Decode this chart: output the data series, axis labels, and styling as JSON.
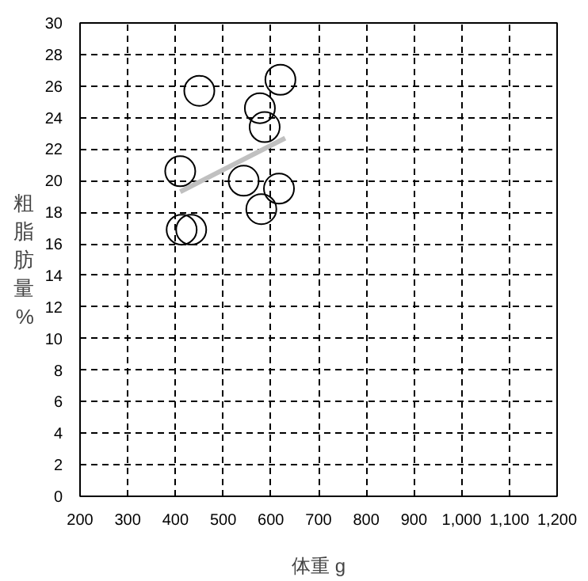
{
  "chart_data": {
    "type": "scatter",
    "xlabel": "体重 g",
    "ylabel": "粗脂肪量%",
    "grid": true,
    "xlim": [
      200,
      1200
    ],
    "ylim": [
      0,
      30
    ],
    "xticks": [
      200,
      300,
      400,
      500,
      600,
      700,
      800,
      900,
      {
        "value": 1000,
        "label": "1,000"
      },
      {
        "value": 1100,
        "label": "1,100"
      },
      {
        "value": 1200,
        "label": "1,200"
      }
    ],
    "yticks": [
      0,
      2,
      4,
      6,
      8,
      10,
      12,
      14,
      16,
      18,
      20,
      22,
      24,
      26,
      28,
      30
    ],
    "series": [
      {
        "marker": "circle",
        "color": "#000000",
        "x": [
          450,
          620,
          577,
          587,
          410,
          543,
          617,
          580,
          413,
          433
        ],
        "values": [
          25.7,
          26.4,
          24.6,
          23.4,
          20.6,
          20.0,
          19.5,
          18.2,
          16.9,
          16.9
        ]
      },
      {
        "type": "line",
        "color": "#c0c0c0",
        "x": [
          410,
          630
        ],
        "values": [
          19.3,
          22.7
        ]
      }
    ]
  }
}
